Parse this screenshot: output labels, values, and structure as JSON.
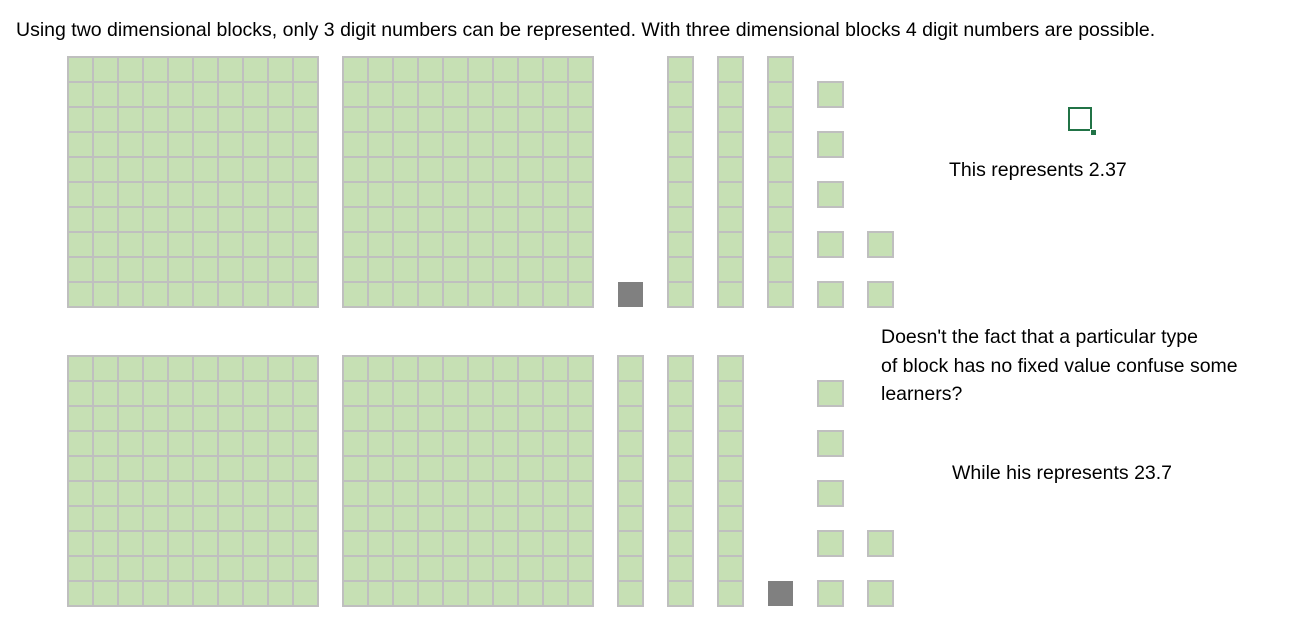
{
  "heading": "Using two dimensional blocks, only 3 digit numbers can be represented. With three dimensional blocks 4 digit numbers are possible.",
  "top_label": "This represents 2.37",
  "question_lines": [
    "Doesn't the fact that a particular type",
    "of block has no fixed value confuse some",
    "learners?"
  ],
  "bottom_label": "While his represents 23.7",
  "colors": {
    "block_fill": "#c6e0b4",
    "block_line": "#bfbfbf",
    "decimal_point": "#808080",
    "cell_selection": "#217346"
  },
  "representations": [
    {
      "value": "2.37",
      "flats": 2,
      "decimal_point_after": "flats",
      "rods": 3,
      "units": 7
    },
    {
      "value": "23.7",
      "flats": 2,
      "rods": 3,
      "decimal_point_after": "rods",
      "units": 7
    }
  ]
}
